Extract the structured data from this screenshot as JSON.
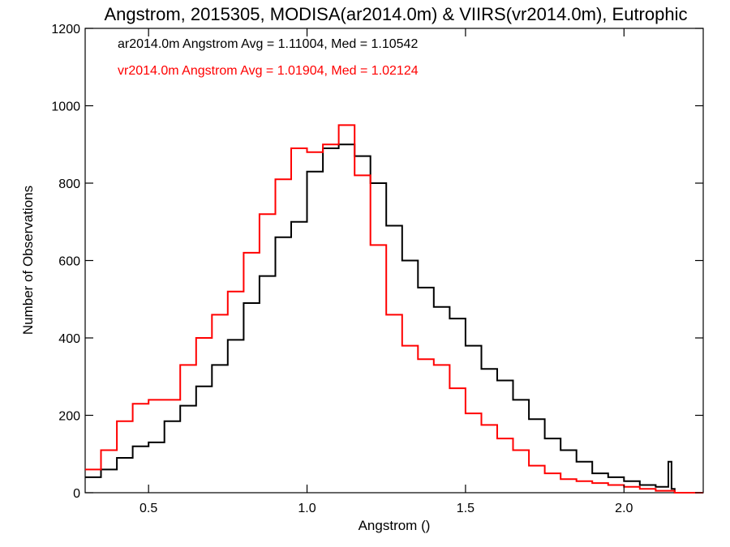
{
  "chart_data": {
    "type": "line",
    "step": true,
    "title": "Angstrom, 2015305, MODISA(ar2014.0m) & VIIRS(vr2014.0m), Eutrophic",
    "xlabel": "Angstrom ()",
    "ylabel": "Number of Observations",
    "xlim": [
      0.3,
      2.25
    ],
    "ylim": [
      0,
      1200
    ],
    "xticks": [
      0.5,
      1.0,
      1.5,
      2.0
    ],
    "xtick_labels": [
      "0.5",
      "1.0",
      "1.5",
      "2.0"
    ],
    "yticks": [
      0,
      200,
      400,
      600,
      800,
      1000,
      1200
    ],
    "ytick_labels": [
      "0",
      "200",
      "400",
      "600",
      "800",
      "1000",
      "1200"
    ],
    "grid": false,
    "legend_position": "top-left",
    "series": [
      {
        "name": "ar2014.0m Angstrom Avg = 1.11004, Med = 1.10542",
        "color": "#000000",
        "x": [
          0.3,
          0.35,
          0.4,
          0.45,
          0.5,
          0.55,
          0.6,
          0.65,
          0.7,
          0.75,
          0.8,
          0.85,
          0.9,
          0.95,
          1.0,
          1.05,
          1.1,
          1.15,
          1.2,
          1.25,
          1.3,
          1.35,
          1.4,
          1.45,
          1.5,
          1.55,
          1.6,
          1.65,
          1.7,
          1.75,
          1.8,
          1.85,
          1.9,
          1.95,
          2.0,
          2.05,
          2.1,
          2.14,
          2.15,
          2.16
        ],
        "values": [
          40,
          60,
          90,
          120,
          130,
          185,
          225,
          275,
          330,
          395,
          490,
          560,
          660,
          700,
          830,
          890,
          900,
          870,
          800,
          690,
          600,
          530,
          480,
          450,
          380,
          320,
          290,
          240,
          190,
          140,
          110,
          80,
          50,
          40,
          30,
          20,
          15,
          80,
          10,
          0
        ]
      },
      {
        "name": "vr2014.0m Angstrom Avg = 1.01904, Med = 1.02124",
        "color": "#ff0000",
        "x": [
          0.3,
          0.35,
          0.4,
          0.45,
          0.5,
          0.55,
          0.6,
          0.65,
          0.7,
          0.75,
          0.8,
          0.85,
          0.9,
          0.95,
          1.0,
          1.05,
          1.1,
          1.15,
          1.2,
          1.25,
          1.3,
          1.35,
          1.4,
          1.45,
          1.5,
          1.55,
          1.6,
          1.65,
          1.7,
          1.75,
          1.8,
          1.85,
          1.9,
          1.95,
          2.0,
          2.05,
          2.1,
          2.15,
          2.16
        ],
        "values": [
          60,
          110,
          185,
          230,
          240,
          240,
          330,
          400,
          460,
          520,
          620,
          720,
          810,
          890,
          880,
          900,
          950,
          820,
          640,
          460,
          380,
          345,
          330,
          270,
          205,
          175,
          140,
          110,
          70,
          50,
          35,
          30,
          25,
          20,
          15,
          10,
          5,
          5,
          0
        ]
      }
    ]
  }
}
